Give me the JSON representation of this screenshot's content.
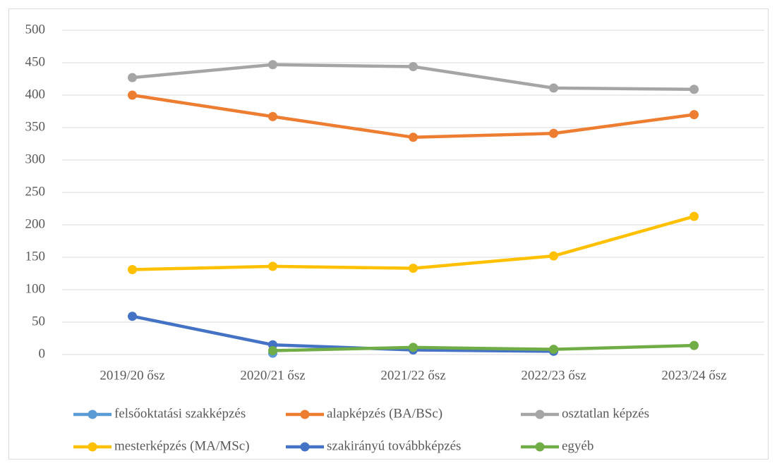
{
  "chart_data": {
    "type": "line",
    "categories": [
      "2019/20 ősz",
      "2020/21 ősz",
      "2021/22 ősz",
      "2022/23 ősz",
      "2023/24 ősz"
    ],
    "series": [
      {
        "name": "felsőoktatási szakképzés",
        "color": "#5b9bd5",
        "values": [
          null,
          2,
          null,
          null,
          null
        ]
      },
      {
        "name": "alapképzés (BA/BSc)",
        "color": "#ed7d31",
        "values": [
          400,
          367,
          335,
          341,
          370
        ]
      },
      {
        "name": "osztatlan képzés",
        "color": "#a5a5a5",
        "values": [
          427,
          447,
          444,
          411,
          409
        ]
      },
      {
        "name": "mesterképzés (MA/MSc)",
        "color": "#ffc000",
        "values": [
          131,
          136,
          133,
          152,
          213
        ]
      },
      {
        "name": "szakirányú továbbképzés",
        "color": "#4472c4",
        "values": [
          59,
          15,
          7,
          5,
          null
        ]
      },
      {
        "name": "egyéb",
        "color": "#70ad47",
        "values": [
          null,
          6,
          11,
          8,
          14
        ]
      }
    ],
    "ylim": [
      0,
      500
    ],
    "yticks": [
      0,
      50,
      100,
      150,
      200,
      250,
      300,
      350,
      400,
      450,
      500
    ],
    "grid": true,
    "legend": "bottom"
  }
}
